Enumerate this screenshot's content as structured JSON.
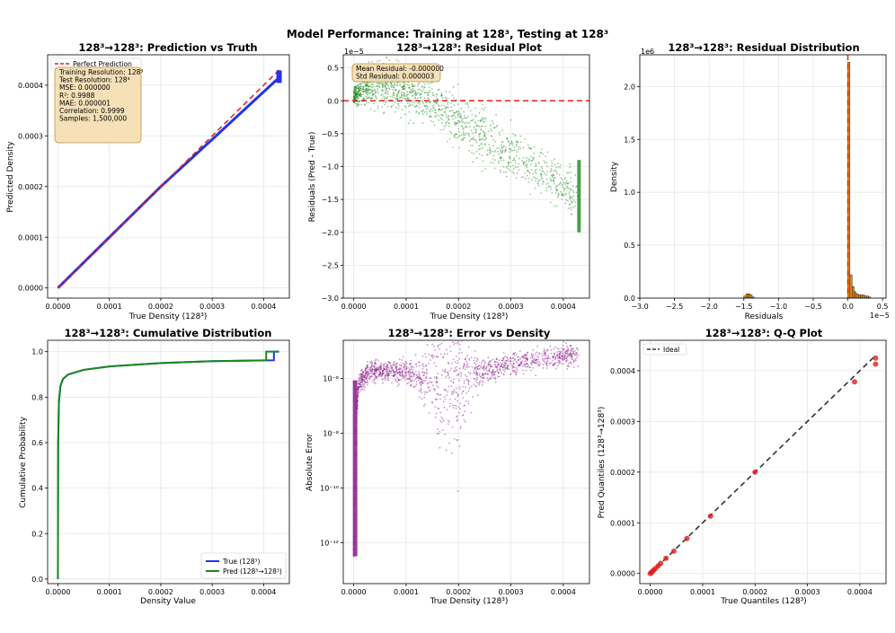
{
  "figure_title": "Model Performance: Training at 128³, Testing at 128³",
  "colors": {
    "blue": "#2434e8",
    "red": "#e01e1e",
    "green": "#1a8a1a",
    "purple": "#8a1a8a",
    "orange": "#e08a1a",
    "box": "#f5deb3"
  },
  "chart_data": [
    {
      "type": "line",
      "title": "128³→128³: Prediction vs Truth",
      "xlabel": "True Density (128³)",
      "ylabel": "Predicted Density",
      "xlim": [
        -2e-05,
        0.00045
      ],
      "ylim": [
        -2e-05,
        0.00046
      ],
      "xticks": [
        0,
        0.0001,
        0.0002,
        0.0003,
        0.0004
      ],
      "xtick_labels": [
        "0.0000",
        "0.0001",
        "0.0002",
        "0.0003",
        "0.0004"
      ],
      "yticks": [
        0,
        0.0001,
        0.0002,
        0.0003,
        0.0004
      ],
      "ytick_labels": [
        "0.0000",
        "0.0001",
        "0.0002",
        "0.0003",
        "0.0004"
      ],
      "series": [
        {
          "name": "Perfect Prediction",
          "style": "dashed",
          "x": [
            0,
            0.00043
          ],
          "y": [
            0,
            0.00043
          ]
        },
        {
          "name": "Predictions",
          "x": [
            0,
            0.0001,
            0.0002,
            0.0003,
            0.00043
          ],
          "y": [
            0,
            0.0001,
            0.0002,
            0.000293,
            0.000415
          ]
        }
      ],
      "legend": [
        "Perfect Prediction"
      ],
      "info_box": [
        "Training Resolution: 128³",
        "Test Resolution: 128³",
        "MSE: 0.000000",
        "R²: 0.9988",
        "MAE: 0.000001",
        "Correlation: 0.9999",
        "Samples: 1,500,000"
      ]
    },
    {
      "type": "scatter",
      "title": "128³→128³: Residual Plot",
      "xlabel": "True Density (128³)",
      "ylabel": "Residuals (Pred - True)",
      "offset_label": "1e−5",
      "xlim": [
        -2e-05,
        0.00045
      ],
      "ylim": [
        -3.0,
        0.7
      ],
      "xticks": [
        0,
        0.0001,
        0.0002,
        0.0003,
        0.0004
      ],
      "xtick_labels": [
        "0.0000",
        "0.0001",
        "0.0002",
        "0.0003",
        "0.0004"
      ],
      "yticks": [
        0.5,
        0.0,
        -0.5,
        -1.0,
        -1.5,
        -2.0,
        -2.5,
        -3.0
      ],
      "ytick_labels": [
        "0.5",
        "0.0",
        "−0.5",
        "−1.0",
        "−1.5",
        "−2.0",
        "−2.5",
        "−3.0"
      ],
      "trend_x": [
        0,
        3e-05,
        6e-05,
        0.0001,
        0.00015,
        0.0002,
        0.00025,
        0.0003,
        0.00035,
        0.0004,
        0.00043
      ],
      "trend_y": [
        0.05,
        0.25,
        0.28,
        0.15,
        -0.05,
        -0.3,
        -0.55,
        -0.8,
        -1.05,
        -1.3,
        -1.5
      ],
      "reference_line": 0.0,
      "info_box": [
        "Mean Residual: -0.000000",
        "Std Residual: 0.000003"
      ]
    },
    {
      "type": "bar",
      "title": "128³→128³: Residual Distribution",
      "xlabel": "Residuals",
      "ylabel": "Density",
      "x_offset_label": "1e−5",
      "y_offset_label": "1e6",
      "xlim": [
        -3.0,
        0.55
      ],
      "ylim": [
        0,
        2.3
      ],
      "xticks": [
        -3.0,
        -2.5,
        -2.0,
        -1.5,
        -1.0,
        -0.5,
        0.0,
        0.5
      ],
      "xtick_labels": [
        "−3.0",
        "−2.5",
        "−2.0",
        "−1.5",
        "−1.0",
        "−0.5",
        "0.0",
        "0.5"
      ],
      "yticks": [
        0,
        0.5,
        1.0,
        1.5,
        2.0
      ],
      "ytick_labels": [
        "0.0",
        "0.5",
        "1.0",
        "1.5",
        "2.0"
      ],
      "bins": [
        -1.5,
        -1.47,
        -1.44,
        -1.41,
        -1.38,
        0.0,
        0.03,
        0.06,
        0.09,
        0.12,
        0.15,
        0.18,
        0.21,
        0.24,
        0.27,
        0.3
      ],
      "values": [
        0.02,
        0.04,
        0.04,
        0.03,
        0.01,
        2.23,
        0.22,
        0.11,
        0.06,
        0.04,
        0.03,
        0.03,
        0.03,
        0.02,
        0.02,
        0.01
      ],
      "reference_line": 0.0
    },
    {
      "type": "line",
      "title": "128³→128³: Cumulative Distribution",
      "xlabel": "Density Value",
      "ylabel": "Cumulative Probability",
      "xlim": [
        -2e-05,
        0.00045
      ],
      "ylim": [
        -0.02,
        1.05
      ],
      "xticks": [
        0,
        0.0001,
        0.0002,
        0.0003,
        0.0004
      ],
      "xtick_labels": [
        "0.0000",
        "0.0001",
        "0.0002",
        "0.0003",
        "0.0004"
      ],
      "yticks": [
        0,
        0.2,
        0.4,
        0.6,
        0.8,
        1.0
      ],
      "ytick_labels": [
        "0.0",
        "0.2",
        "0.4",
        "0.6",
        "0.8",
        "1.0"
      ],
      "series": [
        {
          "name": "True (128³)",
          "x": [
            0,
            5e-07,
            2e-06,
            5e-06,
            1e-05,
            2e-05,
            5e-05,
            0.0001,
            0.0002,
            0.0003,
            0.00042,
            0.00042,
            0.00043
          ],
          "y": [
            0,
            0.6,
            0.78,
            0.85,
            0.88,
            0.9,
            0.92,
            0.935,
            0.95,
            0.958,
            0.962,
            1.0,
            1.0
          ]
        },
        {
          "name": "Pred (128³→128³)",
          "x": [
            0,
            5e-07,
            2e-06,
            5e-06,
            1e-05,
            2e-05,
            5e-05,
            0.0001,
            0.0002,
            0.0003,
            0.000405,
            0.000405,
            0.00043
          ],
          "y": [
            0,
            0.6,
            0.78,
            0.85,
            0.88,
            0.9,
            0.92,
            0.935,
            0.95,
            0.958,
            0.962,
            1.0,
            1.0
          ]
        }
      ],
      "legend": [
        "True (128³)",
        "Pred (128³→128³)"
      ]
    },
    {
      "type": "scatter",
      "title": "128³→128³: Error vs Density",
      "xlabel": "True Density (128³)",
      "ylabel": "Absolute Error",
      "yscale": "log",
      "xlim": [
        -2e-05,
        0.00045
      ],
      "ylim_log10": [
        -13.5,
        -4.6
      ],
      "xticks": [
        0,
        0.0001,
        0.0002,
        0.0003,
        0.0004
      ],
      "xtick_labels": [
        "0.0000",
        "0.0001",
        "0.0002",
        "0.0003",
        "0.0004"
      ],
      "yticks_log10": [
        -6,
        -8,
        -10,
        -12
      ],
      "ytick_labels": [
        "10⁻⁶",
        "10⁻⁸",
        "10⁻¹⁰",
        "10⁻¹²"
      ],
      "trend_x": [
        0,
        5e-06,
        1e-05,
        3e-05,
        6e-05,
        0.0001,
        0.00014,
        0.00018,
        0.00022,
        0.0003,
        0.0004,
        0.00043
      ],
      "trend_log_err": [
        -12.5,
        -7.2,
        -6.1,
        -5.75,
        -5.7,
        -5.75,
        -6.0,
        -6.4,
        -5.9,
        -5.45,
        -5.15,
        -5.1
      ]
    },
    {
      "type": "scatter",
      "title": "128³→128³: Q-Q Plot",
      "xlabel": "True Quantiles (128³)",
      "ylabel": "Pred Quantiles (128³→128³)",
      "xlim": [
        -2e-05,
        0.00045
      ],
      "ylim": [
        -2e-05,
        0.00046
      ],
      "xticks": [
        0,
        0.0001,
        0.0002,
        0.0003,
        0.0004
      ],
      "xtick_labels": [
        "0.0000",
        "0.0001",
        "0.0002",
        "0.0003",
        "0.0004"
      ],
      "yticks": [
        0,
        0.0001,
        0.0002,
        0.0003,
        0.0004
      ],
      "ytick_labels": [
        "0.0000",
        "0.0001",
        "0.0002",
        "0.0003",
        "0.0004"
      ],
      "x": [
        0,
        2e-06,
        4e-06,
        7e-06,
        1e-05,
        1.5e-05,
        2e-05,
        3e-05,
        4.5e-05,
        7e-05,
        0.000115,
        0.0002,
        0.00039,
        0.00043,
        0.00043
      ],
      "y": [
        0,
        2e-06,
        4e-06,
        7e-06,
        1e-05,
        1.5e-05,
        2e-05,
        3e-05,
        4.4e-05,
        6.9e-05,
        0.000113,
        0.0002,
        0.000378,
        0.000425,
        0.000413
      ],
      "ideal": {
        "name": "Ideal",
        "x": [
          0,
          0.00043
        ],
        "y": [
          0,
          0.00043
        ]
      },
      "legend": [
        "Ideal"
      ]
    }
  ]
}
